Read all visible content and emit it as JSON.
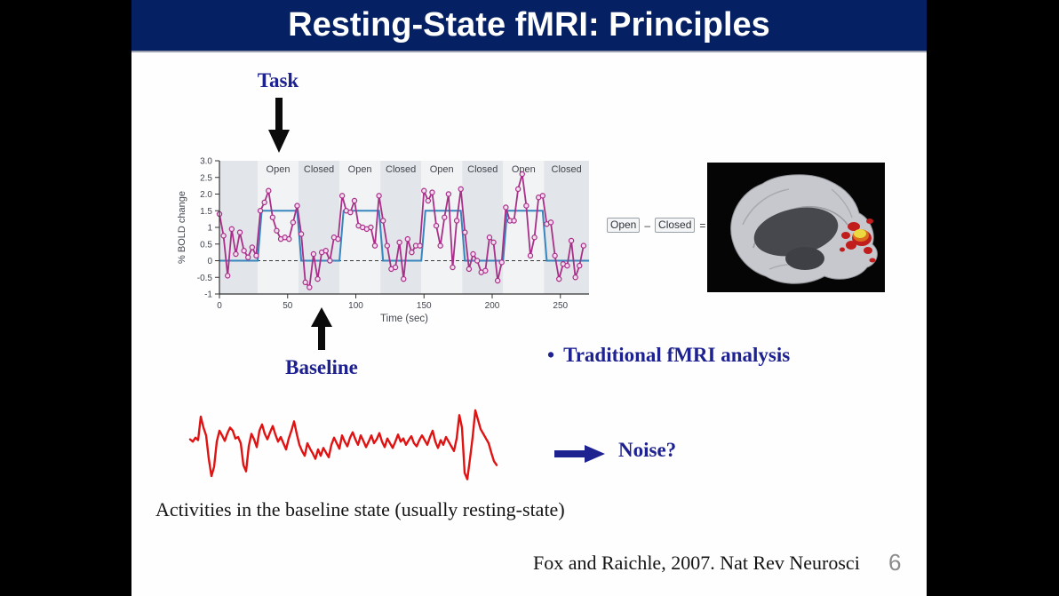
{
  "slide": {
    "title": "Resting-State fMRI: Principles",
    "task_label": "Task",
    "baseline_label": "Baseline",
    "bullet_prefix": "•",
    "bullet": "Traditional fMRI analysis",
    "noise_label": "Noise?",
    "caption": "Activities in the baseline state (usually resting-state)",
    "citation": "Fox and Raichle, 2007. Nat Rev Neurosci",
    "page_number": "6",
    "contrast": {
      "open": "Open",
      "minus": "–",
      "closed": "Closed",
      "equals": "="
    }
  },
  "colors": {
    "title_bar": "#062163",
    "heading_blue": "#1e2290",
    "signal_magenta": "#a93089",
    "marker_fill": "#f3dcef",
    "task_model_blue": "#3886bd",
    "noise_red": "#e01212",
    "band_open": "#f1f3f4",
    "band_closed": "#e2e5e9",
    "axis_text": "#41454e",
    "page_number_gray": "#8c8c8c"
  },
  "chart_data": {
    "type": "line",
    "title": "",
    "xlabel": "Time (sec)",
    "ylabel": "% BOLD change",
    "xlim": [
      0,
      271
    ],
    "ylim": [
      -1,
      3
    ],
    "x_ticks": [
      0,
      50,
      100,
      150,
      200,
      250
    ],
    "y_ticks": [
      {
        "v": 3,
        "label": "3.0"
      },
      {
        "v": 2.5,
        "label": "2.5"
      },
      {
        "v": 2,
        "label": "2.0"
      },
      {
        "v": 1.5,
        "label": "1.5"
      },
      {
        "v": 1,
        "label": "1"
      },
      {
        "v": 0.5,
        "label": "0.5"
      },
      {
        "v": 0,
        "label": "0"
      },
      {
        "v": -0.5,
        "label": "-0.5"
      },
      {
        "v": -1,
        "label": "-1"
      }
    ],
    "blocks": [
      {
        "t0": 0,
        "t1": 28,
        "label": ""
      },
      {
        "t0": 28,
        "t1": 58,
        "label": "Open"
      },
      {
        "t0": 58,
        "t1": 88,
        "label": "Closed"
      },
      {
        "t0": 88,
        "t1": 118,
        "label": "Open"
      },
      {
        "t0": 118,
        "t1": 148,
        "label": "Closed"
      },
      {
        "t0": 148,
        "t1": 178,
        "label": "Open"
      },
      {
        "t0": 178,
        "t1": 208,
        "label": "Closed"
      },
      {
        "t0": 208,
        "t1": 238,
        "label": "Open"
      },
      {
        "t0": 238,
        "t1": 271,
        "label": "Closed"
      }
    ],
    "zero_line_dashed": true,
    "series": [
      {
        "name": "BOLD signal",
        "x_step": 3,
        "y": [
          1.4,
          0.75,
          -0.45,
          0.95,
          0.2,
          0.85,
          0.3,
          0.1,
          0.4,
          0.15,
          1.5,
          1.75,
          2.1,
          1.3,
          0.9,
          0.65,
          0.7,
          0.65,
          1.15,
          1.65,
          0.8,
          -0.65,
          -0.8,
          0.2,
          -0.55,
          0.25,
          0.3,
          0.0,
          0.7,
          0.65,
          1.95,
          1.5,
          1.45,
          1.8,
          1.05,
          1.0,
          0.95,
          1.0,
          0.45,
          1.95,
          1.2,
          0.45,
          -0.25,
          -0.2,
          0.55,
          -0.55,
          0.65,
          0.25,
          0.45,
          0.45,
          2.1,
          1.8,
          2.05,
          1.05,
          0.45,
          1.3,
          2.0,
          -0.2,
          1.2,
          2.15,
          0.85,
          -0.25,
          0.2,
          0.0,
          -0.35,
          -0.3,
          0.7,
          0.55,
          -0.6,
          -0.05,
          1.6,
          1.2,
          1.2,
          2.15,
          2.6,
          1.65,
          0.15,
          0.7,
          1.9,
          1.95,
          1.1,
          1.15,
          0.15,
          -0.55,
          -0.1,
          -0.15,
          0.6,
          -0.5,
          -0.15,
          0.45
        ]
      },
      {
        "name": "Task model (Open blocks)",
        "points": [
          [
            0,
            0
          ],
          [
            28,
            0
          ],
          [
            31,
            1.5
          ],
          [
            57,
            1.5
          ],
          [
            60,
            0
          ],
          [
            88,
            0
          ],
          [
            91,
            1.5
          ],
          [
            117,
            1.5
          ],
          [
            120,
            0
          ],
          [
            148,
            0
          ],
          [
            151,
            1.5
          ],
          [
            177,
            1.5
          ],
          [
            180,
            0
          ],
          [
            208,
            0
          ],
          [
            211,
            1.5
          ],
          [
            237,
            1.5
          ],
          [
            240,
            0
          ],
          [
            271,
            0
          ]
        ]
      }
    ]
  },
  "noise_trace": {
    "name": "Baseline-state activity trace",
    "values": [
      55,
      52,
      57,
      54,
      84,
      70,
      60,
      30,
      8,
      20,
      52,
      66,
      60,
      53,
      63,
      70,
      66,
      56,
      58,
      50,
      22,
      14,
      46,
      62,
      55,
      45,
      66,
      74,
      62,
      55,
      64,
      72,
      61,
      52,
      58,
      50,
      42,
      56,
      66,
      78,
      62,
      48,
      40,
      34,
      50,
      43,
      37,
      30,
      42,
      34,
      44,
      38,
      32,
      48,
      57,
      50,
      43,
      60,
      52,
      46,
      57,
      64,
      55,
      48,
      60,
      53,
      45,
      52,
      60,
      50,
      55,
      63,
      52,
      45,
      56,
      50,
      44,
      52,
      61,
      52,
      56,
      48,
      54,
      59,
      50,
      46,
      54,
      60,
      54,
      48,
      58,
      66,
      52,
      44,
      54,
      48,
      58,
      52,
      46,
      40,
      56,
      86,
      70,
      12,
      4,
      30,
      58,
      92,
      80,
      68,
      62,
      56,
      50,
      38,
      27,
      22
    ]
  }
}
